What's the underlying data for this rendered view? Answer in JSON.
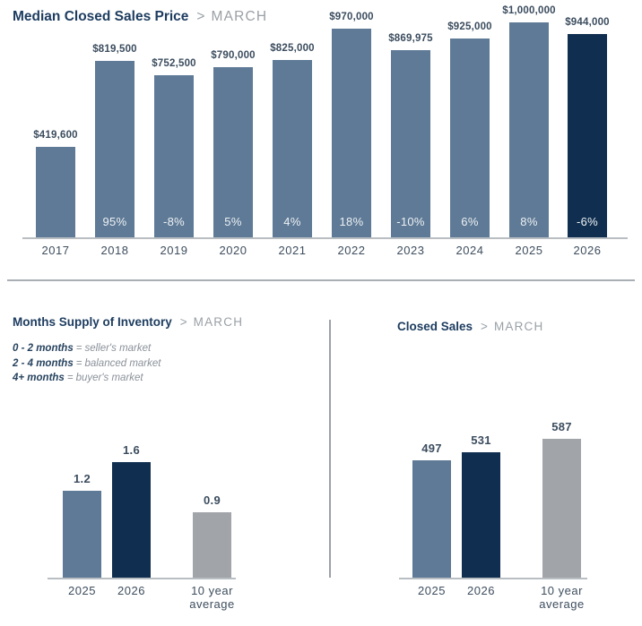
{
  "colors": {
    "bar_default": "#5e7a96",
    "bar_highlight": "#102f50",
    "bar_neutral": "#a1a4a9",
    "title_navy": "#1e3d60",
    "subtitle_gray": "#9aa0a6",
    "label_dark": "#3b4c5e",
    "pct_text": "#eef1f4",
    "axis_gray": "#b9bec3"
  },
  "chart_data": [
    {
      "type": "bar",
      "title": "Median Closed Sales Price",
      "header_arrow": ">",
      "subtitle": "MARCH",
      "categories": [
        "2017",
        "2018",
        "2019",
        "2020",
        "2021",
        "2022",
        "2023",
        "2024",
        "2025",
        "2026"
      ],
      "values": [
        419600,
        819500,
        752500,
        790000,
        825000,
        970000,
        869975,
        925000,
        1000000,
        944000
      ],
      "value_labels": [
        "$419,600",
        "$819,500",
        "$752,500",
        "$790,000",
        "$825,000",
        "$970,000",
        "$869,975",
        "$925,000",
        "$1,000,000",
        "$944,000"
      ],
      "pct_labels": [
        "",
        "95%",
        "-8%",
        "5%",
        "4%",
        "18%",
        "-10%",
        "6%",
        "8%",
        "-6%"
      ],
      "bar_roles": [
        "default",
        "default",
        "default",
        "default",
        "default",
        "default",
        "default",
        "default",
        "default",
        "highlight"
      ],
      "ylim": [
        0,
        1000000
      ],
      "grid": "off",
      "legend_position": "none"
    },
    {
      "type": "bar",
      "title": "Months Supply of Inventory",
      "header_arrow": ">",
      "subtitle": "MARCH",
      "legend": [
        {
          "term": "0 - 2 months",
          "eq": "=",
          "definition": "seller's market"
        },
        {
          "term": "2 - 4 months",
          "eq": "=",
          "definition": "balanced market"
        },
        {
          "term": "4+ months",
          "eq": "=",
          "definition": "buyer's market"
        }
      ],
      "categories": [
        "2025",
        "2026",
        "10 year average"
      ],
      "values": [
        1.2,
        1.6,
        0.9
      ],
      "value_labels": [
        "1.2",
        "1.6",
        "0.9"
      ],
      "bar_roles": [
        "default",
        "highlight",
        "neutral"
      ],
      "ylim": [
        0,
        1.75
      ],
      "grid": "off",
      "legend_position": "top-left"
    },
    {
      "type": "bar",
      "title": "Closed Sales",
      "header_arrow": ">",
      "subtitle": "MARCH",
      "categories": [
        "2025",
        "2026",
        "10 year average"
      ],
      "values": [
        497,
        531,
        587
      ],
      "value_labels": [
        "497",
        "531",
        "587"
      ],
      "bar_roles": [
        "default",
        "highlight",
        "neutral"
      ],
      "ylim": [
        0,
        640
      ],
      "grid": "off",
      "legend_position": "none"
    }
  ]
}
